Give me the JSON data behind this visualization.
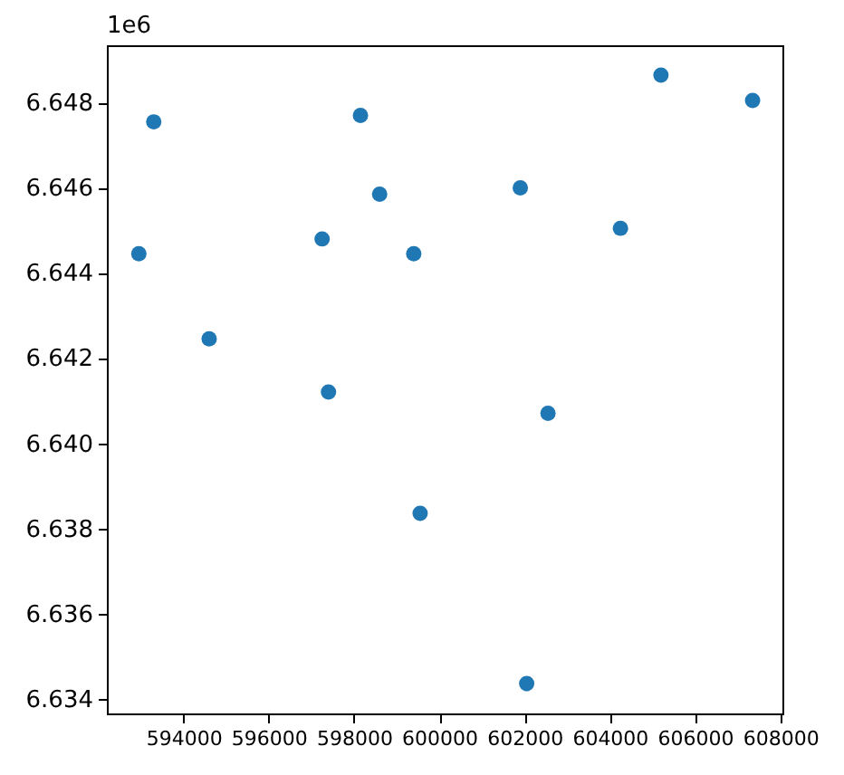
{
  "chart_data": {
    "type": "scatter",
    "color": "#1f77b4",
    "marker": "circle",
    "x": [
      592950,
      593300,
      594600,
      597250,
      597400,
      598150,
      598600,
      599400,
      599550,
      601900,
      602050,
      602550,
      604250,
      605200,
      607350
    ],
    "values": [
      6.64445,
      6.64755,
      6.64245,
      6.6448,
      6.6412,
      6.6477,
      6.64585,
      6.64445,
      6.63835,
      6.646,
      6.63435,
      6.6407,
      6.64505,
      6.64865,
      6.64805
    ],
    "xlim": [
      592200,
      608050
    ],
    "ylim": [
      6.63365,
      6.64935
    ],
    "xticks": [
      594000,
      596000,
      598000,
      600000,
      602000,
      604000,
      606000,
      608000
    ],
    "yticks": [
      6.634,
      6.636,
      6.638,
      {
        "value": 6.64,
        "label": "6.640"
      },
      6.642,
      6.644,
      6.646,
      6.648
    ],
    "annotations": [
      "1e6"
    ]
  }
}
